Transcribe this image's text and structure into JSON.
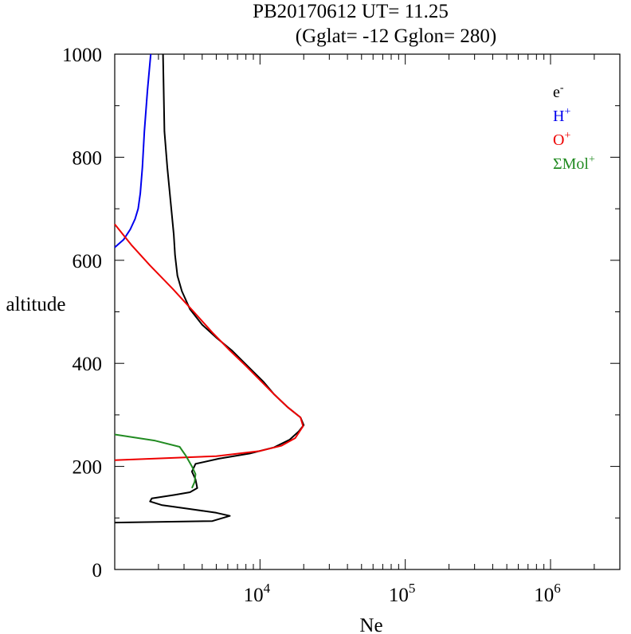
{
  "chart_data": {
    "type": "line",
    "title": "PB20170612   UT=  11.25",
    "subtitle": "(Gglat= -12   Gglon=  280)",
    "xlabel": "Ne",
    "ylabel": "altitude",
    "x_scale": "log",
    "xlim": [
      1000,
      3000000
    ],
    "ylim": [
      0,
      1000
    ],
    "y_ticks": [
      0,
      200,
      400,
      600,
      800,
      1000
    ],
    "x_ticks": [
      {
        "base": "10",
        "exp": "4",
        "value": 10000
      },
      {
        "base": "10",
        "exp": "5",
        "value": 100000
      },
      {
        "base": "10",
        "exp": "6",
        "value": 1000000
      }
    ],
    "legend_position": "top-right",
    "series": [
      {
        "key": "electrons",
        "name": "e",
        "sup": "-",
        "color": "#000000",
        "points": [
          [
            1000,
            91
          ],
          [
            4700,
            94
          ],
          [
            6200,
            104
          ],
          [
            5000,
            110
          ],
          [
            3200,
            118
          ],
          [
            2100,
            125
          ],
          [
            1750,
            132
          ],
          [
            1800,
            138
          ],
          [
            2600,
            145
          ],
          [
            3300,
            150
          ],
          [
            3700,
            158
          ],
          [
            3600,
            175
          ],
          [
            3400,
            190
          ],
          [
            3600,
            205
          ],
          [
            5200,
            215
          ],
          [
            8500,
            225
          ],
          [
            12500,
            237
          ],
          [
            16000,
            252
          ],
          [
            18500,
            268
          ],
          [
            20000,
            280
          ],
          [
            19000,
            295
          ],
          [
            15500,
            315
          ],
          [
            12500,
            340
          ],
          [
            10500,
            365
          ],
          [
            8200,
            395
          ],
          [
            6400,
            425
          ],
          [
            5000,
            450
          ],
          [
            4000,
            475
          ],
          [
            3300,
            505
          ],
          [
            2900,
            540
          ],
          [
            2700,
            570
          ],
          [
            2600,
            610
          ],
          [
            2550,
            650
          ],
          [
            2450,
            700
          ],
          [
            2300,
            780
          ],
          [
            2200,
            850
          ],
          [
            2150,
            1000
          ]
        ]
      },
      {
        "key": "hydrogen",
        "name": "H",
        "sup": "+",
        "color": "#0000ee",
        "points": [
          [
            1000,
            625
          ],
          [
            1150,
            640
          ],
          [
            1280,
            660
          ],
          [
            1380,
            680
          ],
          [
            1450,
            700
          ],
          [
            1500,
            730
          ],
          [
            1550,
            780
          ],
          [
            1600,
            850
          ],
          [
            1680,
            930
          ],
          [
            1770,
            1000
          ]
        ]
      },
      {
        "key": "oxygen",
        "name": "O",
        "sup": "+",
        "color": "#ee0000",
        "points": [
          [
            1000,
            212
          ],
          [
            5000,
            220
          ],
          [
            10000,
            230
          ],
          [
            14000,
            240
          ],
          [
            17500,
            255
          ],
          [
            19800,
            278
          ],
          [
            19000,
            295
          ],
          [
            15500,
            315
          ],
          [
            12500,
            340
          ],
          [
            10200,
            365
          ],
          [
            8000,
            395
          ],
          [
            6200,
            425
          ],
          [
            4700,
            460
          ],
          [
            3500,
            500
          ],
          [
            2500,
            545
          ],
          [
            1750,
            590
          ],
          [
            1300,
            630
          ],
          [
            1000,
            670
          ]
        ]
      },
      {
        "key": "molecular",
        "name": "ΣMol",
        "sup": "+",
        "color": "#228b22",
        "points": [
          [
            1000,
            262
          ],
          [
            1900,
            250
          ],
          [
            2800,
            238
          ],
          [
            3100,
            220
          ],
          [
            3400,
            200
          ],
          [
            3600,
            185
          ],
          [
            3550,
            170
          ],
          [
            3400,
            158
          ]
        ]
      }
    ]
  }
}
